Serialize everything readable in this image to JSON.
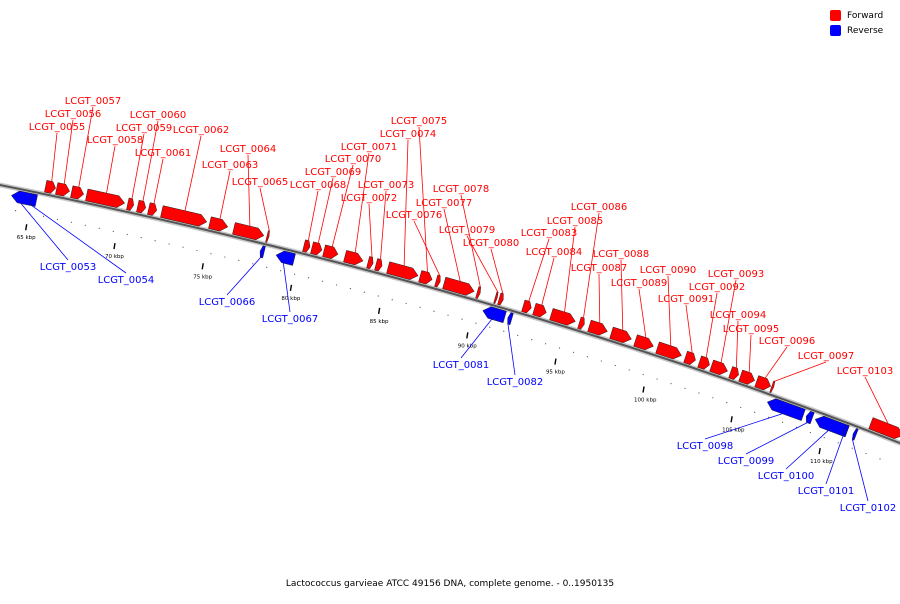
{
  "legend": [
    {
      "label": "Forward",
      "color": "#ff0000"
    },
    {
      "label": "Reverse",
      "color": "#0000ff"
    }
  ],
  "footer": "Lactococcus garvieae ATCC 49156 DNA, complete genome. - 0..1950135",
  "axis": {
    "unit": "kbp",
    "ticks": [
      {
        "kbp": 65,
        "label": "65 kbp"
      },
      {
        "kbp": 70,
        "label": "70 kbp"
      },
      {
        "kbp": 75,
        "label": "75 kbp"
      },
      {
        "kbp": 80,
        "label": "80 kbp"
      },
      {
        "kbp": 85,
        "label": "85 kbp"
      },
      {
        "kbp": 90,
        "label": "90 kbp"
      },
      {
        "kbp": 95,
        "label": "95 kbp"
      },
      {
        "kbp": 100,
        "label": "100 kbp"
      },
      {
        "kbp": 105,
        "label": "105 kbp"
      },
      {
        "kbp": 110,
        "label": "110 kbp"
      }
    ]
  },
  "genes": [
    {
      "id": "LCGT_0053",
      "strand": "reverse"
    },
    {
      "id": "LCGT_0054",
      "strand": "reverse"
    },
    {
      "id": "LCGT_0055",
      "strand": "forward"
    },
    {
      "id": "LCGT_0056",
      "strand": "forward"
    },
    {
      "id": "LCGT_0057",
      "strand": "forward"
    },
    {
      "id": "LCGT_0058",
      "strand": "forward"
    },
    {
      "id": "LCGT_0059",
      "strand": "forward"
    },
    {
      "id": "LCGT_0060",
      "strand": "forward"
    },
    {
      "id": "LCGT_0061",
      "strand": "forward"
    },
    {
      "id": "LCGT_0062",
      "strand": "forward"
    },
    {
      "id": "LCGT_0063",
      "strand": "forward"
    },
    {
      "id": "LCGT_0064",
      "strand": "forward"
    },
    {
      "id": "LCGT_0065",
      "strand": "forward"
    },
    {
      "id": "LCGT_0066",
      "strand": "reverse"
    },
    {
      "id": "LCGT_0067",
      "strand": "reverse"
    },
    {
      "id": "LCGT_0068",
      "strand": "forward"
    },
    {
      "id": "LCGT_0069",
      "strand": "forward"
    },
    {
      "id": "LCGT_0070",
      "strand": "forward"
    },
    {
      "id": "LCGT_0071",
      "strand": "forward"
    },
    {
      "id": "LCGT_0072",
      "strand": "forward"
    },
    {
      "id": "LCGT_0073",
      "strand": "forward"
    },
    {
      "id": "LCGT_0074",
      "strand": "forward"
    },
    {
      "id": "LCGT_0075",
      "strand": "forward"
    },
    {
      "id": "LCGT_0076",
      "strand": "forward"
    },
    {
      "id": "LCGT_0077",
      "strand": "forward"
    },
    {
      "id": "LCGT_0078",
      "strand": "forward"
    },
    {
      "id": "LCGT_0079",
      "strand": "forward"
    },
    {
      "id": "LCGT_0080",
      "strand": "forward"
    },
    {
      "id": "LCGT_0081",
      "strand": "reverse"
    },
    {
      "id": "LCGT_0082",
      "strand": "reverse"
    },
    {
      "id": "LCGT_0083",
      "strand": "forward"
    },
    {
      "id": "LCGT_0084",
      "strand": "forward"
    },
    {
      "id": "LCGT_0085",
      "strand": "forward"
    },
    {
      "id": "LCGT_0086",
      "strand": "forward"
    },
    {
      "id": "LCGT_0087",
      "strand": "forward"
    },
    {
      "id": "LCGT_0088",
      "strand": "forward"
    },
    {
      "id": "LCGT_0089",
      "strand": "forward"
    },
    {
      "id": "LCGT_0090",
      "strand": "forward"
    },
    {
      "id": "LCGT_0091",
      "strand": "forward"
    },
    {
      "id": "LCGT_0092",
      "strand": "forward"
    },
    {
      "id": "LCGT_0093",
      "strand": "forward"
    },
    {
      "id": "LCGT_0094",
      "strand": "forward"
    },
    {
      "id": "LCGT_0095",
      "strand": "forward"
    },
    {
      "id": "LCGT_0096",
      "strand": "forward"
    },
    {
      "id": "LCGT_0097",
      "strand": "forward"
    },
    {
      "id": "LCGT_0098",
      "strand": "reverse"
    },
    {
      "id": "LCGT_0099",
      "strand": "reverse"
    },
    {
      "id": "LCGT_0100",
      "strand": "reverse"
    },
    {
      "id": "LCGT_0101",
      "strand": "reverse"
    },
    {
      "id": "LCGT_0102",
      "strand": "reverse"
    },
    {
      "id": "LCGT_0103",
      "strand": "forward"
    }
  ]
}
